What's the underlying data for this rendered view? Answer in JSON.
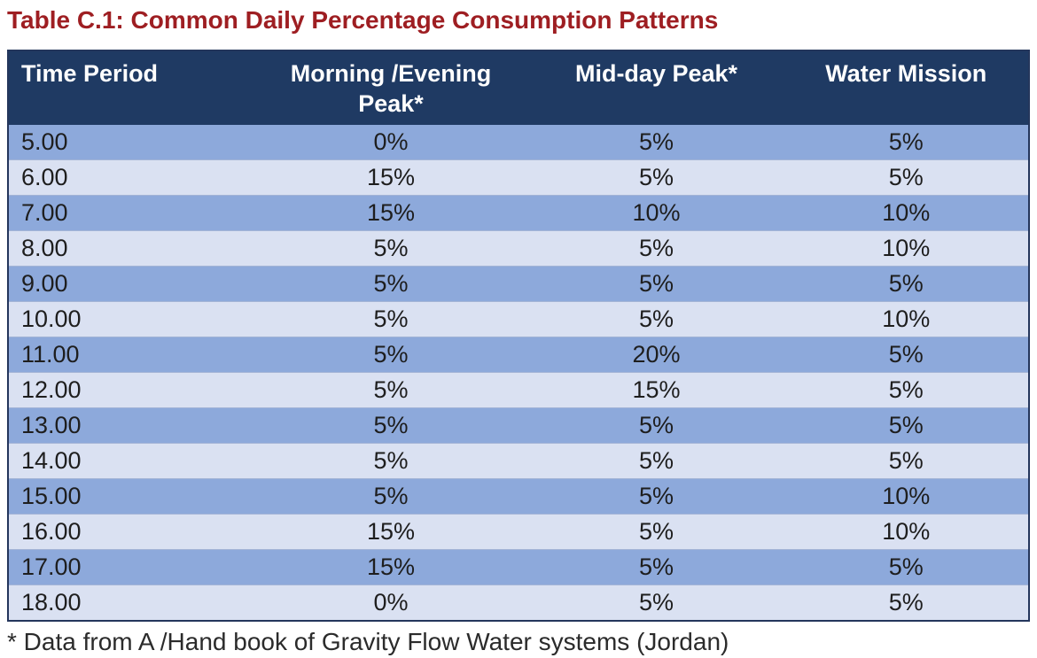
{
  "title": "Table C.1: Common Daily Percentage Consumption Patterns",
  "table": {
    "headers": [
      "Time Period",
      "Morning /Evening Peak*",
      "Mid-day Peak*",
      "Water Mission"
    ],
    "rows": [
      {
        "time": "5.00",
        "values": [
          "0%",
          "5%",
          "5%"
        ]
      },
      {
        "time": "6.00",
        "values": [
          "15%",
          "5%",
          "5%"
        ]
      },
      {
        "time": "7.00",
        "values": [
          "15%",
          "10%",
          "10%"
        ]
      },
      {
        "time": "8.00",
        "values": [
          "5%",
          "5%",
          "10%"
        ]
      },
      {
        "time": "9.00",
        "values": [
          "5%",
          "5%",
          "5%"
        ]
      },
      {
        "time": "10.00",
        "values": [
          "5%",
          "5%",
          "10%"
        ]
      },
      {
        "time": "11.00",
        "values": [
          "5%",
          "20%",
          "5%"
        ]
      },
      {
        "time": "12.00",
        "values": [
          "5%",
          "15%",
          "5%"
        ]
      },
      {
        "time": "13.00",
        "values": [
          "5%",
          "5%",
          "5%"
        ]
      },
      {
        "time": "14.00",
        "values": [
          "5%",
          "5%",
          "5%"
        ]
      },
      {
        "time": "15.00",
        "values": [
          "5%",
          "5%",
          "10%"
        ]
      },
      {
        "time": "16.00",
        "values": [
          "15%",
          "5%",
          "10%"
        ]
      },
      {
        "time": "17.00",
        "values": [
          "15%",
          "5%",
          "5%"
        ]
      },
      {
        "time": "18.00",
        "values": [
          "0%",
          "5%",
          "5%"
        ]
      }
    ]
  },
  "footnote": "* Data from A /Hand book of Gravity Flow Water systems (Jordan)",
  "colors": {
    "title_color": "#9E1E22",
    "header_bg": "#1F3A63",
    "header_text": "#FFFFFF",
    "row_blue": "#8DA9DB",
    "row_light": "#DAE1F2",
    "row_divider": "#A3B4D6",
    "table_border": "#24365C",
    "body_text": "#1E1E1E"
  }
}
